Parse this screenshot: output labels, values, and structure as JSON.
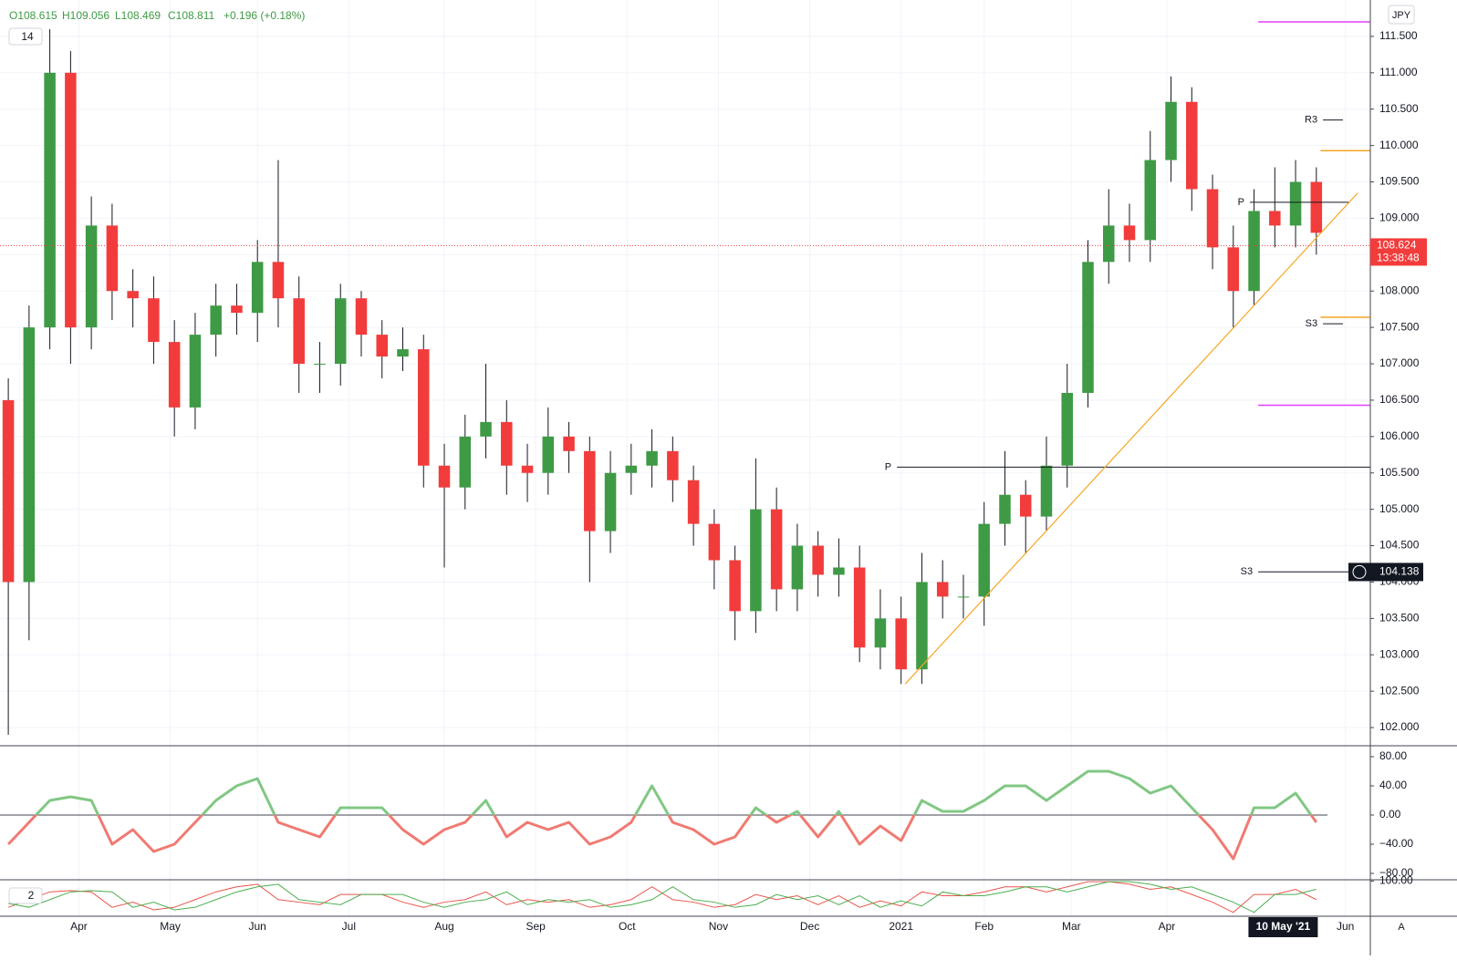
{
  "chart_data": [
    {
      "type": "candlestick",
      "header": [
        "O108.615",
        "H109.056",
        "L108.469",
        "C108.811",
        "+0.196 (+0.18%)"
      ],
      "indicator_badge": 14,
      "currency": "JPY",
      "last_price": 108.624,
      "countdown": "13:38:48",
      "cursor_price": 104.138,
      "crosshair_x": {
        "value": 309,
        "label": "10 May '21"
      },
      "x": [
        2,
        7,
        12,
        17,
        22,
        27,
        32,
        37,
        42,
        47,
        52,
        57,
        62,
        67,
        72,
        77,
        82,
        87,
        92,
        97,
        102,
        107,
        112,
        117,
        122,
        127,
        132,
        137,
        142,
        147,
        152,
        157,
        162,
        167,
        172,
        177,
        182,
        187,
        192,
        197,
        202,
        207,
        212,
        217,
        222,
        227,
        232,
        237,
        242,
        247,
        252,
        257,
        262,
        267,
        272,
        277,
        282,
        287,
        292,
        297,
        302,
        307,
        312,
        317
      ],
      "open": [
        106.5,
        104.0,
        107.5,
        111.0,
        107.5,
        108.9,
        108.0,
        107.9,
        107.3,
        106.4,
        107.4,
        107.8,
        107.7,
        108.4,
        107.9,
        107.0,
        107.0,
        107.9,
        107.4,
        107.1,
        107.2,
        105.6,
        105.3,
        106.0,
        106.2,
        105.6,
        105.5,
        106.0,
        105.8,
        104.7,
        105.5,
        105.6,
        105.8,
        105.4,
        104.8,
        104.3,
        103.6,
        105.0,
        103.9,
        104.5,
        104.1,
        104.2,
        103.1,
        103.5,
        102.8,
        104.0,
        103.8,
        103.8,
        104.8,
        105.2,
        104.9,
        105.6,
        106.6,
        108.4,
        108.9,
        108.7,
        109.8,
        110.6,
        109.4,
        108.6,
        108.0,
        109.1,
        108.9,
        109.5
      ],
      "high": [
        106.8,
        107.8,
        111.6,
        111.3,
        109.3,
        109.2,
        108.3,
        108.2,
        107.6,
        107.7,
        108.1,
        108.1,
        108.7,
        109.8,
        108.2,
        107.3,
        108.1,
        108.0,
        107.6,
        107.5,
        107.4,
        105.9,
        106.3,
        107.0,
        106.5,
        105.9,
        106.4,
        106.2,
        106.0,
        105.8,
        105.9,
        106.1,
        106.0,
        105.6,
        105.0,
        104.5,
        105.7,
        105.3,
        104.8,
        104.7,
        104.6,
        104.5,
        103.9,
        103.8,
        104.4,
        104.3,
        104.1,
        105.1,
        105.8,
        105.4,
        106.0,
        107.0,
        108.7,
        109.4,
        109.2,
        110.2,
        110.95,
        110.8,
        109.6,
        108.9,
        109.4,
        109.7,
        109.8,
        109.7
      ],
      "low": [
        101.9,
        103.2,
        107.2,
        107.0,
        107.2,
        107.6,
        107.5,
        107.0,
        106.0,
        106.1,
        107.1,
        107.4,
        107.3,
        107.5,
        106.6,
        106.6,
        106.7,
        107.1,
        106.8,
        106.9,
        105.3,
        104.2,
        105.0,
        105.7,
        105.2,
        105.1,
        105.2,
        105.5,
        104.0,
        104.4,
        105.2,
        105.3,
        105.1,
        104.5,
        103.9,
        103.2,
        103.3,
        103.6,
        103.6,
        103.8,
        103.8,
        102.9,
        102.8,
        102.6,
        102.6,
        103.5,
        103.5,
        103.4,
        104.5,
        104.4,
        104.7,
        105.3,
        106.4,
        108.1,
        108.4,
        108.4,
        109.5,
        109.1,
        108.3,
        107.5,
        107.8,
        108.6,
        108.6,
        108.5
      ],
      "close": [
        104.0,
        107.5,
        111.0,
        107.5,
        108.9,
        108.0,
        107.9,
        107.3,
        106.4,
        107.4,
        107.8,
        107.7,
        108.4,
        107.9,
        107.0,
        107.0,
        107.9,
        107.4,
        107.1,
        107.2,
        105.6,
        105.3,
        106.0,
        106.2,
        105.6,
        105.5,
        106.0,
        105.8,
        104.7,
        105.5,
        105.6,
        105.8,
        105.4,
        104.8,
        104.3,
        103.6,
        105.0,
        103.9,
        104.5,
        104.1,
        104.2,
        103.1,
        103.5,
        102.8,
        104.0,
        103.8,
        103.8,
        104.8,
        105.2,
        104.9,
        105.6,
        106.6,
        108.4,
        108.9,
        108.7,
        109.8,
        110.6,
        109.4,
        108.6,
        108.0,
        109.1,
        108.9,
        109.5,
        108.8
      ],
      "up_color": "#3f9a45",
      "down_color": "#f23c3c",
      "levels": [
        {
          "label": "P",
          "value": 105.58,
          "from": 216,
          "to": 330
        },
        {
          "label": "S3",
          "value": 104.14,
          "from": 303,
          "to": 330
        },
        {
          "label": "R3",
          "value": 110.35,
          "from": 318.6,
          "to": 323.4
        },
        {
          "label": "P",
          "value": 109.22,
          "from": 301,
          "to": 325
        },
        {
          "label": "S3",
          "value": 107.55,
          "from": 318.6,
          "to": 323.4
        }
      ],
      "lines": [
        {
          "value": 111.7,
          "from": 303,
          "to": 330,
          "color": "#e040fb"
        },
        {
          "value": 106.43,
          "from": 303,
          "to": 330,
          "color": "#e040fb"
        },
        {
          "value": 109.93,
          "from": 318,
          "to": 330,
          "color": "#f5a623"
        },
        {
          "value": 107.64,
          "from": 318,
          "to": 330,
          "color": "#f5a623"
        }
      ],
      "trendline": {
        "from": [
          218,
          102.6
        ],
        "to": [
          327,
          109.35
        ],
        "color": "#f5a623"
      },
      "xlim": [
        0,
        330
      ],
      "ylim": [
        101.75,
        112.0
      ],
      "xticks": [
        {
          "value": 19,
          "label": "Apr"
        },
        {
          "value": 41,
          "label": "May"
        },
        {
          "value": 62,
          "label": "Jun"
        },
        {
          "value": 84,
          "label": "Jul"
        },
        {
          "value": 107,
          "label": "Aug"
        },
        {
          "value": 129,
          "label": "Sep"
        },
        {
          "value": 151,
          "label": "Oct"
        },
        {
          "value": 173,
          "label": "Nov"
        },
        {
          "value": 195,
          "label": "Dec"
        },
        {
          "value": 217,
          "label": "2021"
        },
        {
          "value": 237,
          "label": "Feb"
        },
        {
          "value": 258,
          "label": "Mar"
        },
        {
          "value": 281,
          "label": "Apr"
        },
        {
          "value": 324,
          "label": "Jun"
        }
      ],
      "yticks": [
        {
          "value": 102,
          "label": "102.000"
        },
        {
          "value": 102.5,
          "label": "102.500"
        },
        {
          "value": 103,
          "label": "103.000"
        },
        {
          "value": 103.5,
          "label": "103.500"
        },
        {
          "value": 104,
          "label": "104.000"
        },
        {
          "value": 104.5,
          "label": "104.500"
        },
        {
          "value": 105,
          "label": "105.000"
        },
        {
          "value": 105.5,
          "label": "105.500"
        },
        {
          "value": 106,
          "label": "106.000"
        },
        {
          "value": 106.5,
          "label": "106.500"
        },
        {
          "value": 107,
          "label": "107.000"
        },
        {
          "value": 107.5,
          "label": "107.500"
        },
        {
          "value": 108,
          "label": "108.000"
        },
        {
          "value": 108.5,
          "label": "108.500"
        },
        {
          "value": 109,
          "label": "109.000"
        },
        {
          "value": 109.5,
          "label": "109.500"
        },
        {
          "value": 110,
          "label": "110.000"
        },
        {
          "value": 110.5,
          "label": "110.500"
        },
        {
          "value": 111,
          "label": "111.000"
        },
        {
          "value": 111.5,
          "label": "111.500"
        }
      ],
      "grid": true
    },
    {
      "type": "oscillator",
      "values": [
        -40,
        -10,
        20,
        25,
        20,
        -40,
        -20,
        -50,
        -40,
        -10,
        20,
        40,
        50,
        -10,
        -20,
        -30,
        10,
        10,
        10,
        -20,
        -40,
        -20,
        -10,
        20,
        -30,
        -10,
        -20,
        -10,
        -40,
        -30,
        -10,
        40,
        -10,
        -20,
        -40,
        -30,
        10,
        -10,
        5,
        -30,
        5,
        -40,
        -15,
        -35,
        20,
        5,
        5,
        20,
        40,
        40,
        20,
        40,
        60,
        60,
        50,
        30,
        40,
        10,
        -20,
        -60,
        10,
        10,
        30,
        -10
      ],
      "up_color": "#81c784",
      "down_color": "#f07a72",
      "ylim": [
        -88.75,
        95
      ],
      "yticks": [
        {
          "value": 80,
          "label": "80.00"
        },
        {
          "value": 40,
          "label": "40.00"
        },
        {
          "value": 0,
          "label": "0.00"
        },
        {
          "value": -40,
          "label": "−40.00"
        },
        {
          "value": -80,
          "label": "−80.00"
        }
      ]
    },
    {
      "type": "line",
      "indicator_badge": 2,
      "series": [
        {
          "color": "#e8574c",
          "values": [
            18,
            42,
            66,
            70,
            66,
            18,
            34,
            10,
            18,
            42,
            66,
            82,
            90,
            42,
            34,
            26,
            58,
            58,
            58,
            34,
            18,
            34,
            42,
            66,
            26,
            42,
            34,
            42,
            18,
            26,
            42,
            82,
            42,
            34,
            18,
            26,
            58,
            42,
            54,
            26,
            54,
            18,
            38,
            22,
            66,
            54,
            54,
            66,
            82,
            82,
            66,
            82,
            98,
            98,
            90,
            74,
            82,
            58,
            34,
            2,
            58,
            58,
            74,
            42
          ]
        },
        {
          "color": "#4caf50",
          "values": [
            30,
            18,
            42,
            66,
            70,
            66,
            18,
            34,
            10,
            18,
            42,
            66,
            82,
            90,
            42,
            34,
            26,
            58,
            58,
            58,
            34,
            18,
            34,
            42,
            66,
            26,
            42,
            34,
            42,
            18,
            26,
            42,
            82,
            42,
            34,
            18,
            26,
            58,
            42,
            54,
            26,
            54,
            18,
            38,
            22,
            66,
            54,
            54,
            66,
            82,
            82,
            66,
            82,
            98,
            98,
            90,
            74,
            82,
            58,
            34,
            2,
            58,
            58,
            74
          ]
        }
      ],
      "ylim": [
        -10,
        104
      ],
      "yticks": [
        {
          "value": 100,
          "label": "100.00"
        }
      ]
    }
  ]
}
